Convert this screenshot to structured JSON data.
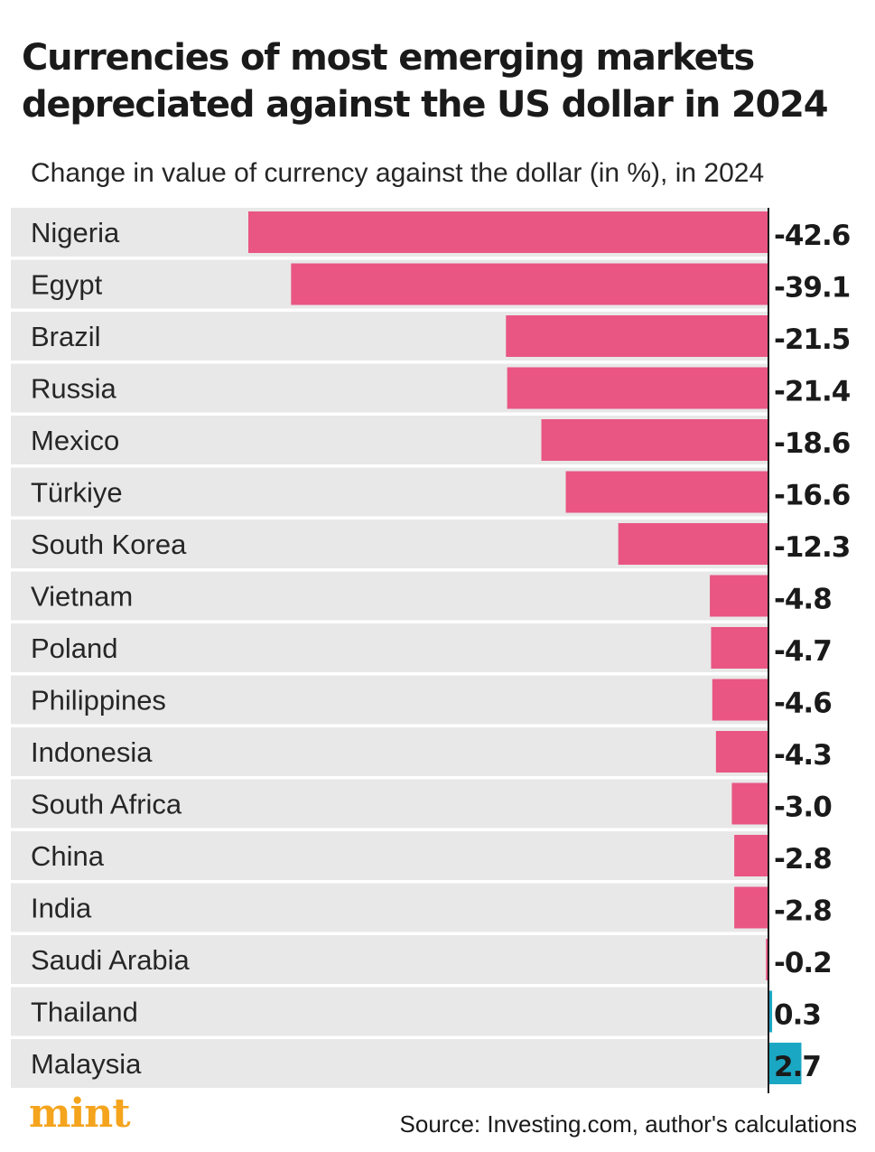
{
  "title": "Currencies of most emerging markets depreciated against the US dollar in 2024",
  "subtitle": "Change in value of currency against the dollar (in %), in 2024",
  "source": "Source: Investing.com, author's calculations",
  "logo_text": "mint",
  "colors": {
    "negative": "#e95683",
    "positive": "#1aa7c4",
    "row_background": "#e8e8e8",
    "axis": "#1a1a1a",
    "logo": "#f4a41d"
  },
  "chart_data": {
    "type": "bar",
    "orientation": "horizontal",
    "title": "Currencies of most emerging markets depreciated against the US dollar in 2024",
    "xlabel": "Change in value of currency against the dollar (in %), in 2024",
    "ylabel": "",
    "xlim": [
      -44.7,
      7
    ],
    "categories": [
      "Nigeria",
      "Egypt",
      "Brazil",
      "Russia",
      "Mexico",
      "Türkiye",
      "South Korea",
      "Vietnam",
      "Poland",
      "Philippines",
      "Indonesia",
      "South Africa",
      "China",
      "India",
      "Saudi Arabia",
      "Thailand",
      "Malaysia"
    ],
    "values": [
      -42.6,
      -39.1,
      -21.5,
      -21.4,
      -18.6,
      -16.6,
      -12.3,
      -4.8,
      -4.7,
      -4.6,
      -4.3,
      -3.0,
      -2.8,
      -2.8,
      -0.2,
      0.3,
      2.7
    ],
    "labels": [
      "-42.6",
      "-39.1",
      "-21.5",
      "-21.4",
      "-18.6",
      "-16.6",
      "-12.3",
      "-4.8",
      "-4.7",
      "-4.6",
      "-4.3",
      "-3.0",
      "-2.8",
      "-2.8",
      "-0.2",
      "0.3",
      "2.7"
    ]
  }
}
